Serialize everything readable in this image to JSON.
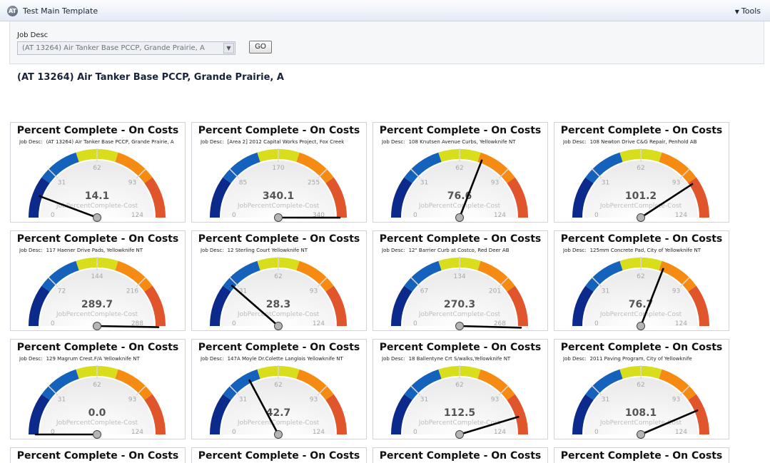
{
  "app": {
    "title": "Test Main Template",
    "logo": "AT",
    "tools_label": "Tools"
  },
  "filter": {
    "label": "Job Desc",
    "selected": "(AT 13264) Air Tanker Base PCCP, Grande Prairie, A",
    "go_label": "GO"
  },
  "page_heading": "(AT 13264) Air Tanker Base PCCP, Grande Prairie, A",
  "colors": {
    "band1": "#0b2a8c",
    "band2": "#1462bb",
    "band3": "#d8de1c",
    "band4": "#f58b13",
    "band5": "#e0552b"
  },
  "gauge_common": {
    "title": "Percent Complete - On Costs",
    "job_label": "Job Desc:",
    "watermark": "JobPercentComplete-Cost"
  },
  "gauges": [
    {
      "job": "(AT 13264) Air Tanker Base PCCP, Grande Prairie, A",
      "value": 14.1,
      "value_text": "14.1",
      "max": 124,
      "ticks": [
        "0",
        "31",
        "62",
        "93",
        "124"
      ]
    },
    {
      "job": "[Area 2] 2012 Capital Works Project, Fox Creek",
      "value": 340.1,
      "value_text": "340.1",
      "max": 340,
      "ticks": [
        "0",
        "85",
        "170",
        "255",
        "340"
      ]
    },
    {
      "job": "108 Knutsen Avenue Curbs, Yellowknife NT",
      "value": 76.6,
      "value_text": "76.6",
      "max": 124,
      "ticks": [
        "0",
        "31",
        "62",
        "93",
        "124"
      ]
    },
    {
      "job": "108 Newton Drive C&G Repair, Penhold AB",
      "value": 101.2,
      "value_text": "101.2",
      "max": 124,
      "ticks": [
        "0",
        "31",
        "62",
        "93",
        "124"
      ]
    },
    {
      "job": "117 Haener Drive Pads, Yellowknife NT",
      "value": 289.7,
      "value_text": "289.7",
      "max": 288,
      "ticks": [
        "0",
        "72",
        "144",
        "216",
        "288"
      ]
    },
    {
      "job": "12 Sterling Court Yellowknife NT",
      "value": 28.3,
      "value_text": "28.3",
      "max": 124,
      "ticks": [
        "0",
        "31",
        "62",
        "93",
        "124"
      ]
    },
    {
      "job": "12\" Barrier Curb at Costco, Red Deer AB",
      "value": 270.3,
      "value_text": "270.3",
      "max": 268,
      "ticks": [
        "0",
        "67",
        "134",
        "201",
        "268"
      ]
    },
    {
      "job": "125mm Concrete Pad, City of Yellowknife NT",
      "value": 76.7,
      "value_text": "76.7",
      "max": 124,
      "ticks": [
        "0",
        "31",
        "62",
        "93",
        "124"
      ]
    },
    {
      "job": "129 Magrum Crest.F/A Yellowknife NT",
      "value": 0.0,
      "value_text": "0.0",
      "max": 124,
      "ticks": [
        "0",
        "31",
        "62",
        "93",
        "124"
      ]
    },
    {
      "job": "147A Moyle Dr.Colette Langlois Yellowknife NT",
      "value": 42.7,
      "value_text": "42.7",
      "max": 124,
      "ticks": [
        "0",
        "31",
        "62",
        "93",
        "124"
      ]
    },
    {
      "job": "18 Ballentyne Crt S/walks,Yellowknife NT",
      "value": 112.5,
      "value_text": "112.5",
      "max": 124,
      "ticks": [
        "0",
        "31",
        "62",
        "93",
        "124"
      ]
    },
    {
      "job": "2011 Paving Program, City of Yellowknife",
      "value": 108.1,
      "value_text": "108.1",
      "max": 124,
      "ticks": [
        "0",
        "31",
        "62",
        "93",
        "124"
      ]
    }
  ]
}
